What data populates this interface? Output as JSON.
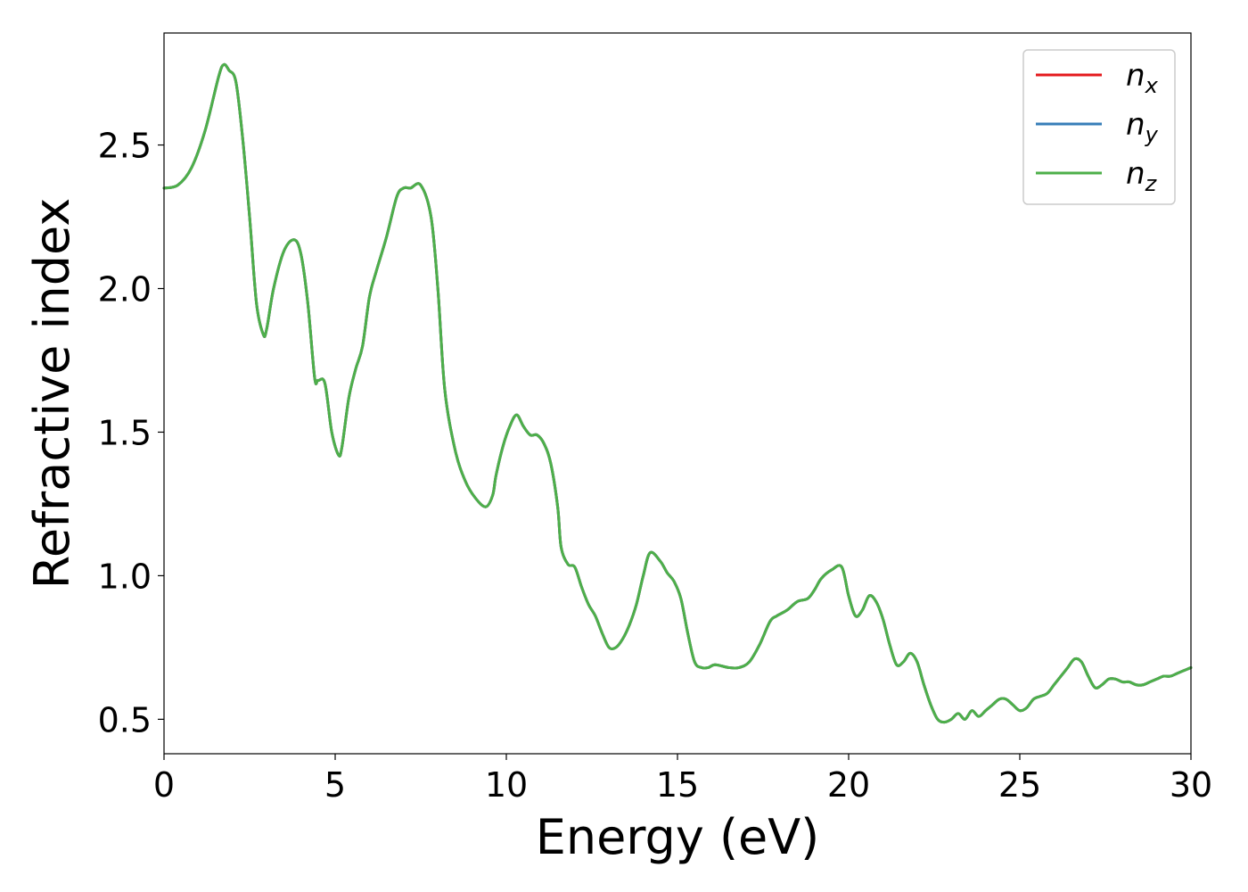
{
  "chart_data": {
    "type": "line",
    "title": "",
    "xlabel": "Energy (eV)",
    "ylabel": "Refractive index",
    "xlim": [
      0,
      30
    ],
    "ylim": [
      0.38,
      2.89
    ],
    "xticks": [
      0,
      5,
      10,
      15,
      20,
      25,
      30
    ],
    "xtick_labels": [
      "0",
      "5",
      "10",
      "15",
      "20",
      "25",
      "30"
    ],
    "yticks": [
      0.5,
      1.0,
      1.5,
      2.0,
      2.5
    ],
    "ytick_labels": [
      "0.5",
      "1.0",
      "1.5",
      "2.0",
      "2.5"
    ],
    "grid": false,
    "legend_position": "top-right",
    "x": [
      0,
      0.4,
      0.8,
      1.2,
      1.6,
      1.75,
      1.9,
      2.1,
      2.3,
      2.5,
      2.7,
      2.9,
      3.0,
      3.2,
      3.5,
      3.8,
      4.0,
      4.2,
      4.4,
      4.5,
      4.7,
      4.9,
      5.1,
      5.2,
      5.4,
      5.6,
      5.8,
      6.0,
      6.2,
      6.5,
      6.8,
      7.0,
      7.2,
      7.5,
      7.8,
      8.0,
      8.2,
      8.5,
      8.8,
      9.1,
      9.4,
      9.6,
      9.7,
      9.9,
      10.1,
      10.3,
      10.5,
      10.7,
      10.9,
      11.1,
      11.3,
      11.5,
      11.6,
      11.8,
      12.0,
      12.2,
      12.4,
      12.6,
      12.8,
      13.0,
      13.2,
      13.4,
      13.6,
      13.8,
      14.0,
      14.2,
      14.5,
      14.7,
      14.9,
      15.1,
      15.3,
      15.5,
      15.7,
      15.9,
      16.1,
      16.5,
      16.8,
      17.1,
      17.4,
      17.7,
      17.9,
      18.2,
      18.5,
      18.8,
      19.0,
      19.2,
      19.5,
      19.8,
      20.0,
      20.2,
      20.4,
      20.6,
      20.8,
      21.0,
      21.2,
      21.4,
      21.6,
      21.8,
      22.0,
      22.2,
      22.4,
      22.6,
      22.8,
      23.0,
      23.2,
      23.4,
      23.6,
      23.8,
      24.0,
      24.2,
      24.4,
      24.6,
      24.8,
      25.0,
      25.2,
      25.4,
      25.6,
      25.8,
      26.0,
      26.2,
      26.4,
      26.6,
      26.8,
      27.0,
      27.2,
      27.4,
      27.6,
      27.8,
      28.0,
      28.2,
      28.4,
      28.6,
      28.8,
      29.0,
      29.2,
      29.4,
      29.6,
      29.8,
      30.0
    ],
    "series": [
      {
        "name": "n_x",
        "color": "#e41a1c",
        "values": [
          2.35,
          2.36,
          2.42,
          2.55,
          2.74,
          2.78,
          2.76,
          2.72,
          2.52,
          2.25,
          1.95,
          1.84,
          1.86,
          2.0,
          2.13,
          2.17,
          2.12,
          1.95,
          1.69,
          1.68,
          1.67,
          1.5,
          1.42,
          1.45,
          1.62,
          1.72,
          1.8,
          1.97,
          2.06,
          2.18,
          2.32,
          2.35,
          2.35,
          2.36,
          2.25,
          2.0,
          1.65,
          1.44,
          1.33,
          1.27,
          1.24,
          1.28,
          1.35,
          1.45,
          1.52,
          1.56,
          1.52,
          1.49,
          1.49,
          1.46,
          1.39,
          1.24,
          1.1,
          1.04,
          1.03,
          0.96,
          0.9,
          0.86,
          0.8,
          0.75,
          0.75,
          0.78,
          0.83,
          0.9,
          1.0,
          1.08,
          1.05,
          1.01,
          0.98,
          0.92,
          0.8,
          0.7,
          0.68,
          0.68,
          0.69,
          0.68,
          0.68,
          0.7,
          0.76,
          0.84,
          0.86,
          0.88,
          0.91,
          0.92,
          0.95,
          0.99,
          1.02,
          1.03,
          0.93,
          0.86,
          0.88,
          0.93,
          0.91,
          0.85,
          0.76,
          0.69,
          0.7,
          0.73,
          0.7,
          0.62,
          0.55,
          0.5,
          0.49,
          0.5,
          0.52,
          0.5,
          0.53,
          0.51,
          0.53,
          0.55,
          0.57,
          0.57,
          0.55,
          0.53,
          0.54,
          0.57,
          0.58,
          0.59,
          0.62,
          0.65,
          0.68,
          0.71,
          0.7,
          0.65,
          0.61,
          0.62,
          0.64,
          0.64,
          0.63,
          0.63,
          0.62,
          0.62,
          0.63,
          0.64,
          0.65,
          0.65,
          0.66,
          0.67,
          0.68
        ]
      },
      {
        "name": "n_y",
        "color": "#377eb8",
        "values": [
          2.35,
          2.36,
          2.42,
          2.55,
          2.74,
          2.78,
          2.76,
          2.72,
          2.52,
          2.25,
          1.95,
          1.84,
          1.86,
          2.0,
          2.13,
          2.17,
          2.12,
          1.95,
          1.69,
          1.68,
          1.67,
          1.5,
          1.42,
          1.45,
          1.62,
          1.72,
          1.8,
          1.97,
          2.06,
          2.18,
          2.32,
          2.35,
          2.35,
          2.36,
          2.25,
          2.0,
          1.65,
          1.44,
          1.33,
          1.27,
          1.24,
          1.28,
          1.35,
          1.45,
          1.52,
          1.56,
          1.52,
          1.49,
          1.49,
          1.46,
          1.39,
          1.24,
          1.1,
          1.04,
          1.03,
          0.96,
          0.9,
          0.86,
          0.8,
          0.75,
          0.75,
          0.78,
          0.83,
          0.9,
          1.0,
          1.08,
          1.05,
          1.01,
          0.98,
          0.92,
          0.8,
          0.7,
          0.68,
          0.68,
          0.69,
          0.68,
          0.68,
          0.7,
          0.76,
          0.84,
          0.86,
          0.88,
          0.91,
          0.92,
          0.95,
          0.99,
          1.02,
          1.03,
          0.93,
          0.86,
          0.88,
          0.93,
          0.91,
          0.85,
          0.76,
          0.69,
          0.7,
          0.73,
          0.7,
          0.62,
          0.55,
          0.5,
          0.49,
          0.5,
          0.52,
          0.5,
          0.53,
          0.51,
          0.53,
          0.55,
          0.57,
          0.57,
          0.55,
          0.53,
          0.54,
          0.57,
          0.58,
          0.59,
          0.62,
          0.65,
          0.68,
          0.71,
          0.7,
          0.65,
          0.61,
          0.62,
          0.64,
          0.64,
          0.63,
          0.63,
          0.62,
          0.62,
          0.63,
          0.64,
          0.65,
          0.65,
          0.66,
          0.67,
          0.68
        ]
      },
      {
        "name": "n_z",
        "color": "#4daf4a",
        "values": [
          2.35,
          2.36,
          2.42,
          2.55,
          2.74,
          2.78,
          2.76,
          2.72,
          2.52,
          2.25,
          1.95,
          1.84,
          1.86,
          2.0,
          2.13,
          2.17,
          2.12,
          1.95,
          1.69,
          1.68,
          1.67,
          1.5,
          1.42,
          1.45,
          1.62,
          1.72,
          1.8,
          1.97,
          2.06,
          2.18,
          2.32,
          2.35,
          2.35,
          2.36,
          2.25,
          2.0,
          1.65,
          1.44,
          1.33,
          1.27,
          1.24,
          1.28,
          1.35,
          1.45,
          1.52,
          1.56,
          1.52,
          1.49,
          1.49,
          1.46,
          1.39,
          1.24,
          1.1,
          1.04,
          1.03,
          0.96,
          0.9,
          0.86,
          0.8,
          0.75,
          0.75,
          0.78,
          0.83,
          0.9,
          1.0,
          1.08,
          1.05,
          1.01,
          0.98,
          0.92,
          0.8,
          0.7,
          0.68,
          0.68,
          0.69,
          0.68,
          0.68,
          0.7,
          0.76,
          0.84,
          0.86,
          0.88,
          0.91,
          0.92,
          0.95,
          0.99,
          1.02,
          1.03,
          0.93,
          0.86,
          0.88,
          0.93,
          0.91,
          0.85,
          0.76,
          0.69,
          0.7,
          0.73,
          0.7,
          0.62,
          0.55,
          0.5,
          0.49,
          0.5,
          0.52,
          0.5,
          0.53,
          0.51,
          0.53,
          0.55,
          0.57,
          0.57,
          0.55,
          0.53,
          0.54,
          0.57,
          0.58,
          0.59,
          0.62,
          0.65,
          0.68,
          0.71,
          0.7,
          0.65,
          0.61,
          0.62,
          0.64,
          0.64,
          0.63,
          0.63,
          0.62,
          0.62,
          0.63,
          0.64,
          0.65,
          0.65,
          0.66,
          0.67,
          0.68
        ]
      }
    ],
    "legend": [
      {
        "symbol": "n",
        "subscript": "x",
        "color": "#e41a1c"
      },
      {
        "symbol": "n",
        "subscript": "y",
        "color": "#377eb8"
      },
      {
        "symbol": "n",
        "subscript": "z",
        "color": "#4daf4a"
      }
    ]
  }
}
